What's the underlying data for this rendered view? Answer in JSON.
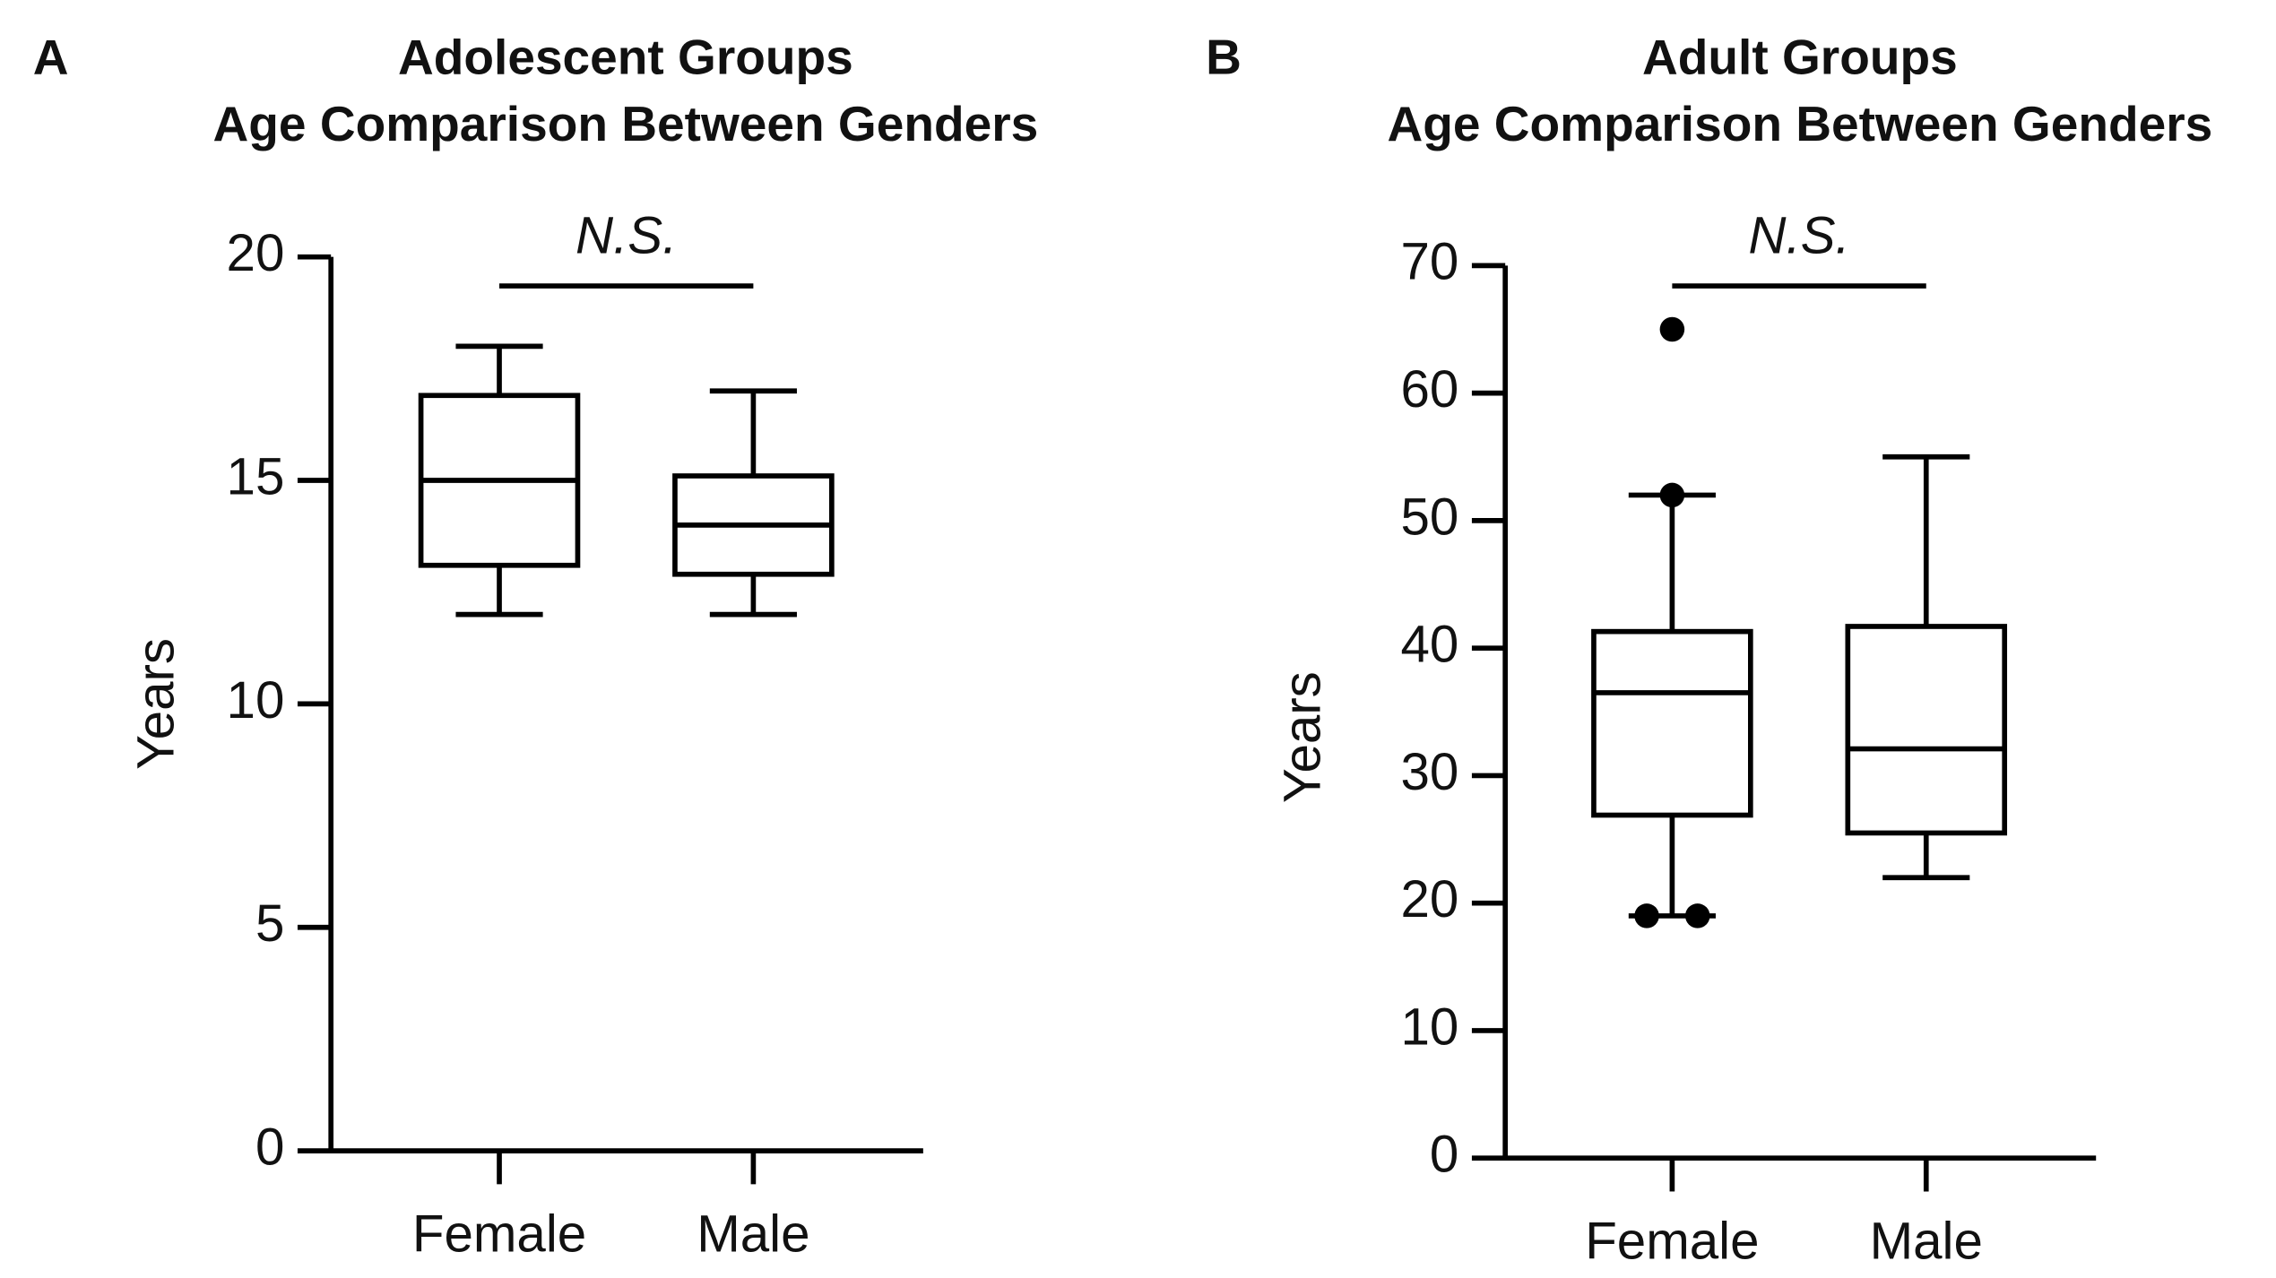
{
  "chart_data": [
    {
      "type": "box",
      "panel": "A",
      "title": "Adolescent Groups",
      "subtitle": "Age Comparison Between Genders",
      "annotation": "N.S.",
      "ylabel": "Years",
      "categories": [
        "Female",
        "Male"
      ],
      "stats": [
        {
          "min": 12,
          "q1": 13.1,
          "median": 15,
          "q3": 16.9,
          "max": 18,
          "outliers": []
        },
        {
          "min": 12,
          "q1": 12.9,
          "median": 14,
          "q3": 15.1,
          "max": 17,
          "outliers": []
        }
      ],
      "color": "#000000",
      "ylim": [
        0,
        20
      ],
      "yticks": [
        0,
        5,
        10,
        15,
        20
      ]
    },
    {
      "type": "box",
      "panel": "B",
      "title": "Adult Groups",
      "subtitle": "Age Comparison Between Genders",
      "annotation": "N.S.",
      "ylabel": "Years",
      "categories": [
        "Female",
        "Male"
      ],
      "stats": [
        {
          "min": 19,
          "q1": 26.9,
          "median": 36.5,
          "q3": 41.3,
          "max": 52,
          "outliers": [
            65,
            52,
            19,
            19
          ]
        },
        {
          "min": 22,
          "q1": 25.5,
          "median": 32.1,
          "q3": 41.7,
          "max": 55,
          "outliers": []
        }
      ],
      "color": "#000000",
      "ylim": [
        0,
        70
      ],
      "yticks": [
        0,
        10,
        20,
        30,
        40,
        50,
        60,
        70
      ]
    }
  ]
}
